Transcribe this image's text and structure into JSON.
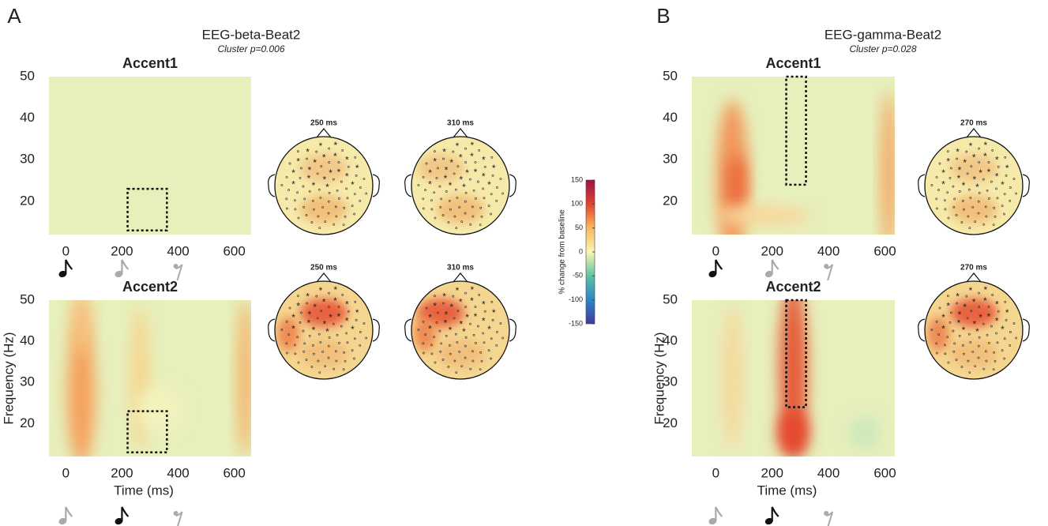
{
  "panels": [
    {
      "label": "A",
      "title": "EEG-beta-Beat2",
      "subtitle": "Cluster p=0.006",
      "ylabel": "Frequency (Hz)",
      "xlabel": "Time (ms)",
      "topo_times": [
        "250 ms",
        "310 ms"
      ],
      "plots": [
        {
          "title": "Accent1",
          "xlim": [
            -60,
            660
          ],
          "ylim": [
            12,
            50
          ],
          "xticks": [
            0,
            200,
            400,
            600
          ],
          "yticks": [
            20,
            30,
            40,
            50
          ],
          "cluster": {
            "x": [
              220,
              360
            ],
            "y": [
              13,
              23
            ]
          }
        },
        {
          "title": "Accent2",
          "xlim": [
            -60,
            660
          ],
          "ylim": [
            12,
            50
          ],
          "xticks": [
            0,
            200,
            400,
            600
          ],
          "yticks": [
            20,
            30,
            40,
            50
          ],
          "cluster": {
            "x": [
              220,
              360
            ],
            "y": [
              13,
              23
            ]
          }
        }
      ]
    },
    {
      "label": "B",
      "title": "EEG-gamma-Beat2",
      "subtitle": "Cluster p=0.028",
      "ylabel": "Frequency (Hz)",
      "xlabel": "Time (ms)",
      "topo_times": [
        "270 ms"
      ],
      "plots": [
        {
          "title": "Accent1",
          "xlim": [
            -85,
            635
          ],
          "ylim": [
            12,
            50
          ],
          "xticks": [
            0,
            200,
            400,
            600
          ],
          "yticks": [
            20,
            30,
            40,
            50
          ],
          "cluster": {
            "x": [
              250,
              320
            ],
            "y": [
              24,
              50
            ]
          }
        },
        {
          "title": "Accent2",
          "xlim": [
            -85,
            635
          ],
          "ylim": [
            12,
            50
          ],
          "xticks": [
            0,
            200,
            400,
            600
          ],
          "yticks": [
            20,
            30,
            40,
            50
          ],
          "cluster": {
            "x": [
              250,
              320
            ],
            "y": [
              24,
              50
            ]
          }
        }
      ]
    }
  ],
  "colorbar": {
    "label": "% change from baseline",
    "lim": [
      -150,
      150
    ],
    "ticks": [
      150,
      100,
      50,
      0,
      -50,
      -100,
      -150
    ]
  }
}
